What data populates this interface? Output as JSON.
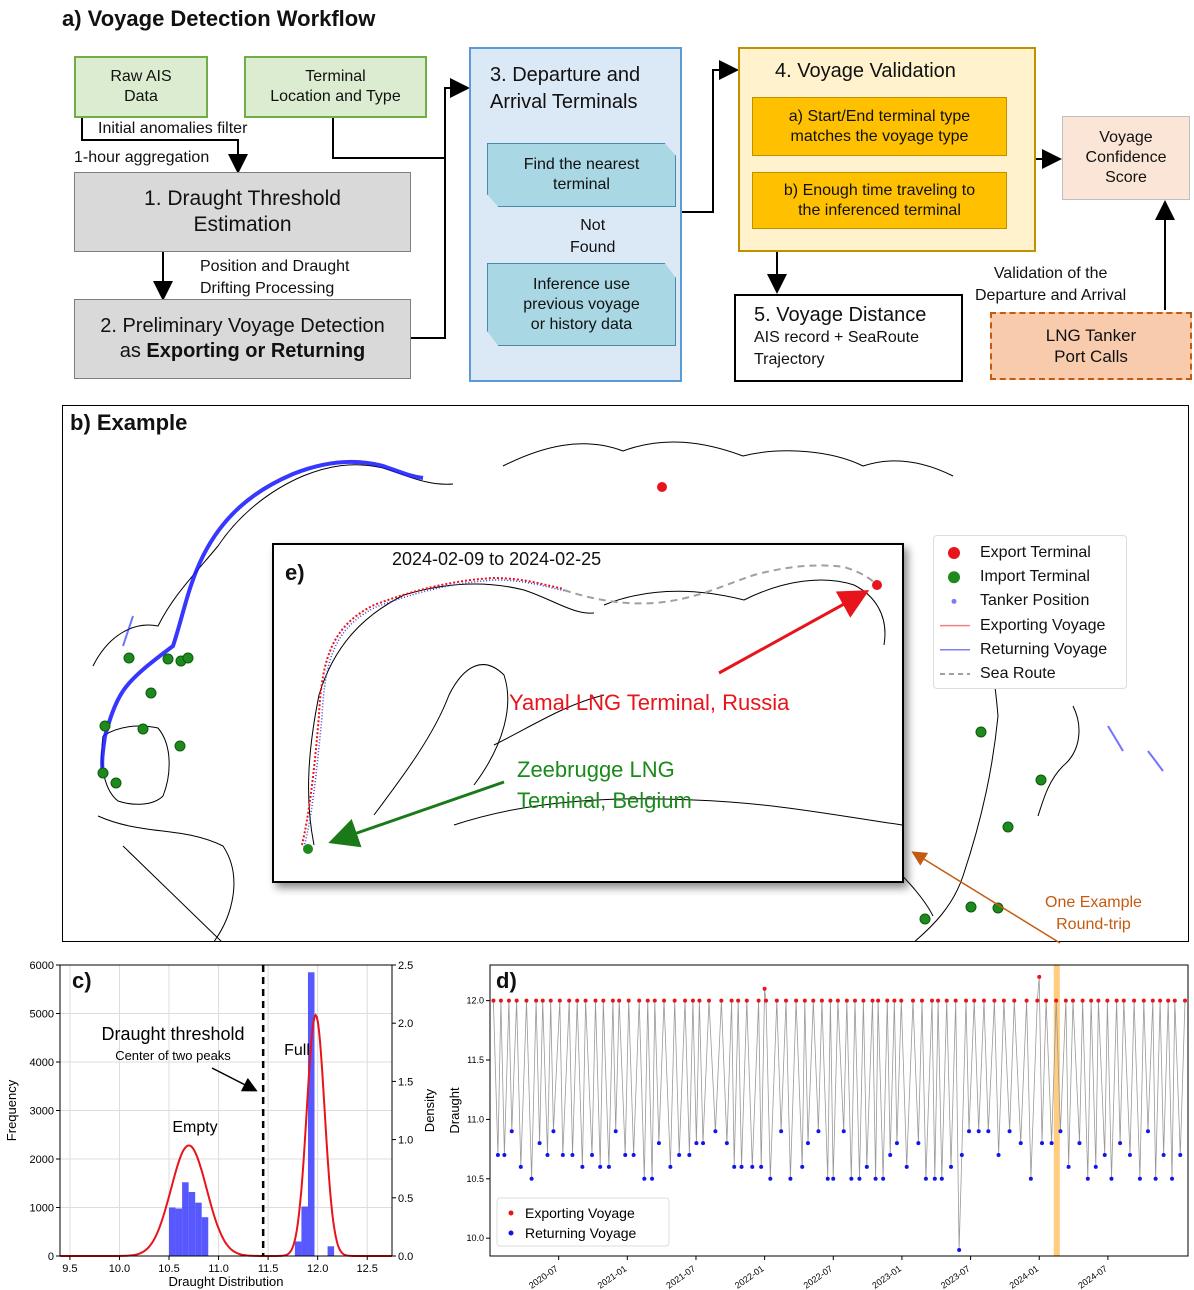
{
  "panel_a": {
    "title": "a) Voyage Detection Workflow",
    "raw_ais": [
      "Raw AIS",
      "Data"
    ],
    "terminal_loc": [
      "Terminal",
      "Location and Type"
    ],
    "filter_note": "Initial anomalies filter",
    "aggregation_note": "1-hour aggregation",
    "step1": [
      "1. Draught Threshold",
      "Estimation"
    ],
    "position_note": [
      "Position and Draught",
      "Drifting Processing"
    ],
    "step2_line1": "2. Preliminary Voyage Detection",
    "step2_prefix": "as ",
    "step2_bold": "Exporting or Returning",
    "step3_title": [
      "3. Departure and",
      "Arrival Terminals"
    ],
    "find_nearest": [
      "Find the nearest",
      "terminal"
    ],
    "not_found": [
      "Not",
      "Found"
    ],
    "inference": [
      "Inference use",
      "previous voyage",
      "or history data"
    ],
    "step4_title": "4. Voyage Validation",
    "val_a": [
      "a) Start/End terminal type",
      "matches the voyage type"
    ],
    "val_b": [
      "b) Enough time traveling to",
      "the inferenced terminal"
    ],
    "confidence": [
      "Voyage",
      "Confidence",
      "Score"
    ],
    "validation_note": [
      "Validation of the",
      "Departure and Arrival"
    ],
    "port_calls": [
      "LNG Tanker",
      "Port Calls"
    ],
    "step5_title": "5. Voyage Distance",
    "step5_sub": [
      "AIS record + SeaRoute",
      "Trajectory"
    ]
  },
  "panel_b": {
    "title": "b) Example",
    "legend": [
      {
        "label": "Export Terminal",
        "color": "#e8141b",
        "marker": "dot"
      },
      {
        "label": "Import Terminal",
        "color": "#1e8a1e",
        "marker": "dot"
      },
      {
        "label": "Tanker Position",
        "color": "#7a7aff",
        "marker": "small-dot"
      },
      {
        "label": "Exporting Voyage",
        "color": "#f08080",
        "marker": "line"
      },
      {
        "label": "Returning Voyage",
        "color": "#8080f0",
        "marker": "line"
      },
      {
        "label": "Sea Route",
        "color": "#a0a0a0",
        "marker": "dashed-line"
      }
    ],
    "roundtrip_note": [
      "One Example",
      "Round-trip"
    ]
  },
  "panel_e": {
    "label": "e)",
    "date_range": "2024-02-09 to 2024-02-25",
    "yamal": "Yamal LNG Terminal, Russia",
    "zeebrugge": [
      "Zeebrugge LNG",
      "Terminal, Belgium"
    ]
  },
  "chart_data": [
    {
      "id": "c",
      "type": "bar",
      "label": "c)",
      "xlabel": "Draught Distribution",
      "ylabel": "Frequency",
      "ylabel_right": "Density",
      "xlim": [
        9.4,
        12.75
      ],
      "ylim": [
        0,
        6000
      ],
      "ylim_right": [
        0,
        2.5
      ],
      "xticks": [
        9.5,
        10.0,
        10.5,
        11.0,
        11.5,
        12.0,
        12.5
      ],
      "yticks": [
        0,
        1000,
        2000,
        3000,
        4000,
        5000,
        6000
      ],
      "yticks_right": [
        0.0,
        0.5,
        1.0,
        1.5,
        2.0,
        2.5
      ],
      "bin_width": 0.066,
      "bars": [
        {
          "x": 10.5,
          "value": 1000
        },
        {
          "x": 10.566,
          "value": 980
        },
        {
          "x": 10.632,
          "value": 1520
        },
        {
          "x": 10.698,
          "value": 1320
        },
        {
          "x": 10.764,
          "value": 1100
        },
        {
          "x": 10.83,
          "value": 800
        },
        {
          "x": 11.77,
          "value": 300
        },
        {
          "x": 11.836,
          "value": 1020
        },
        {
          "x": 11.902,
          "value": 5850
        },
        {
          "x": 12.1,
          "value": 200
        }
      ],
      "density_curve": {
        "peaks": [
          {
            "mean": 10.7,
            "sd": 0.18,
            "height": 0.95
          },
          {
            "mean": 11.98,
            "sd": 0.09,
            "height": 2.07
          }
        ]
      },
      "threshold": 11.45,
      "threshold_label": "Draught threshold",
      "threshold_sub": "Center of two peaks",
      "empty_label": "Empty",
      "full_label": "Full",
      "bar_color": "#3b3bff",
      "curve_color": "#e8141b"
    },
    {
      "id": "d",
      "type": "scatter",
      "label": "d)",
      "ylabel": "Draught",
      "ylim": [
        9.85,
        12.3
      ],
      "yticks": [
        10.0,
        10.5,
        11.0,
        11.5,
        12.0
      ],
      "xticks": [
        "2020-07",
        "2021-01",
        "2021-07",
        "2022-01",
        "2022-07",
        "2023-01",
        "2023-07",
        "2024-01",
        "2024-07"
      ],
      "xlim": [
        "2020-01",
        "2025-02"
      ],
      "series": [
        {
          "name": "Exporting Voyage",
          "color": "#e8141b"
        },
        {
          "name": "Returning Voyage",
          "color": "#1414e8"
        }
      ],
      "highlight": [
        "2024-02-09",
        "2024-02-25"
      ],
      "highlight_color": "#ffc060",
      "pattern": {
        "export_level": 12.0,
        "return_levels": [
          10.5,
          10.6,
          10.7,
          10.8,
          10.9
        ],
        "outliers": [
          {
            "t": "2023-06",
            "v": 9.9
          },
          {
            "t": "2024-01",
            "v": 12.2
          },
          {
            "t": "2022-01",
            "v": 12.1
          }
        ]
      }
    }
  ]
}
